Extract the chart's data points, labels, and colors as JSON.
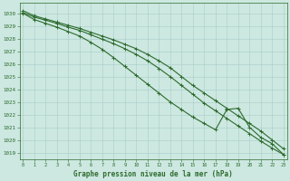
{
  "title": "Graphe pression niveau de la mer (hPa)",
  "background_color": "#cce8e0",
  "grid_color": "#aacccc",
  "line_color": "#2d6a2d",
  "xlim_min": -0.3,
  "xlim_max": 23.3,
  "ylim_min": 1018.5,
  "ylim_max": 1030.8,
  "yticks": [
    1019,
    1020,
    1021,
    1022,
    1023,
    1024,
    1025,
    1026,
    1027,
    1028,
    1029,
    1030
  ],
  "xticks": [
    0,
    1,
    2,
    3,
    4,
    5,
    6,
    7,
    8,
    9,
    10,
    11,
    12,
    13,
    14,
    15,
    16,
    17,
    18,
    19,
    20,
    21,
    22,
    23
  ],
  "hours": [
    0,
    1,
    2,
    3,
    4,
    5,
    6,
    7,
    8,
    9,
    10,
    11,
    12,
    13,
    14,
    15,
    16,
    17,
    18,
    19,
    20,
    21,
    22,
    23
  ],
  "line1": [
    1030.2,
    1029.8,
    1029.55,
    1029.3,
    1029.05,
    1028.8,
    1028.5,
    1028.2,
    1027.9,
    1027.55,
    1027.2,
    1026.75,
    1026.25,
    1025.7,
    1025.0,
    1024.3,
    1023.7,
    1023.1,
    1022.5,
    1021.9,
    1021.3,
    1020.7,
    1020.0,
    1019.3
  ],
  "line2": [
    1030.05,
    1029.7,
    1029.45,
    1029.2,
    1028.9,
    1028.65,
    1028.3,
    1027.95,
    1027.6,
    1027.2,
    1026.75,
    1026.25,
    1025.65,
    1025.0,
    1024.3,
    1023.6,
    1022.9,
    1022.3,
    1021.7,
    1021.1,
    1020.5,
    1019.9,
    1019.35,
    1018.85
  ],
  "line3": [
    1030.0,
    1029.5,
    1029.2,
    1028.9,
    1028.55,
    1028.2,
    1027.7,
    1027.15,
    1026.5,
    1025.8,
    1025.1,
    1024.4,
    1023.7,
    1023.0,
    1022.4,
    1021.8,
    1021.3,
    1020.8,
    1022.4,
    1022.5,
    1021.0,
    1020.2,
    1019.7,
    1018.85
  ]
}
